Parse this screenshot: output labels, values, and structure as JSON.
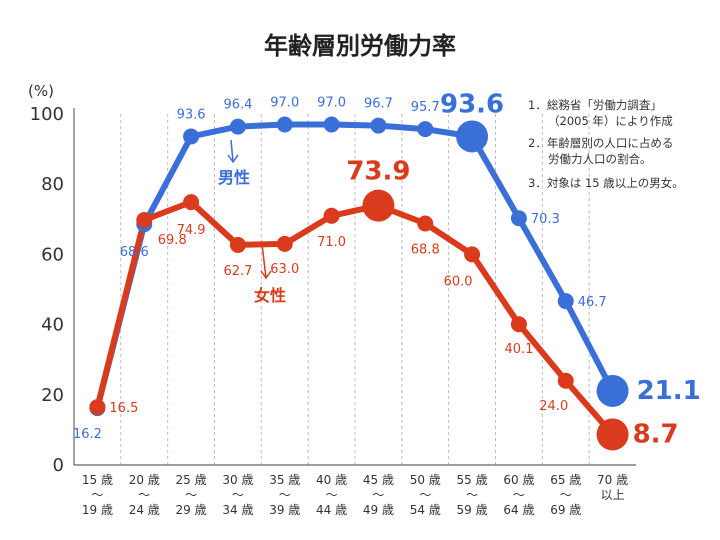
{
  "chart_data": {
    "type": "line",
    "title": "年齢層別労働力率",
    "ylabel": "(%)",
    "ylim": [
      0,
      100
    ],
    "yticks": [
      0,
      20,
      40,
      60,
      80,
      100
    ],
    "categories": [
      [
        "15 歳",
        "〜",
        "19 歳"
      ],
      [
        "20 歳",
        "〜",
        "24 歳"
      ],
      [
        "25 歳",
        "〜",
        "29 歳"
      ],
      [
        "30 歳",
        "〜",
        "34 歳"
      ],
      [
        "35 歳",
        "〜",
        "39 歳"
      ],
      [
        "40 歳",
        "〜",
        "44 歳"
      ],
      [
        "45 歳",
        "〜",
        "49 歳"
      ],
      [
        "50 歳",
        "〜",
        "54 歳"
      ],
      [
        "55 歳",
        "〜",
        "59 歳"
      ],
      [
        "60 歳",
        "〜",
        "64 歳"
      ],
      [
        "65 歳",
        "〜",
        "69 歳"
      ],
      [
        "70 歳",
        "以上"
      ]
    ],
    "series": [
      {
        "name": "男性",
        "color": "#3a6fd8",
        "values": [
          16.2,
          68.6,
          93.6,
          96.4,
          97.0,
          97.0,
          96.7,
          95.7,
          93.6,
          70.3,
          46.7,
          21.1
        ],
        "labels": [
          "16.2",
          "68.6",
          "93.6",
          "96.4",
          "97.0",
          "97.0",
          "96.7",
          "95.7",
          "93.6",
          "70.3",
          "46.7",
          "21.1"
        ]
      },
      {
        "name": "女性",
        "color": "#d93b1c",
        "values": [
          16.5,
          69.8,
          74.9,
          62.7,
          63.0,
          71.0,
          73.9,
          68.8,
          60.0,
          40.1,
          24.0,
          8.7
        ],
        "labels": [
          "16.5",
          "69.8",
          "74.9",
          "62.7",
          "63.0",
          "71.0",
          "73.9",
          "68.8",
          "60.0",
          "40.1",
          "24.0",
          "8.7"
        ]
      }
    ],
    "notes": [
      [
        "1．総務省「労働力調査」",
        "（2005 年）により作成"
      ],
      [
        "2．年齢層別の人口に占める",
        "労働力人口の割合。"
      ],
      [
        "3．対象は 15 歳以上の男女。"
      ]
    ]
  }
}
